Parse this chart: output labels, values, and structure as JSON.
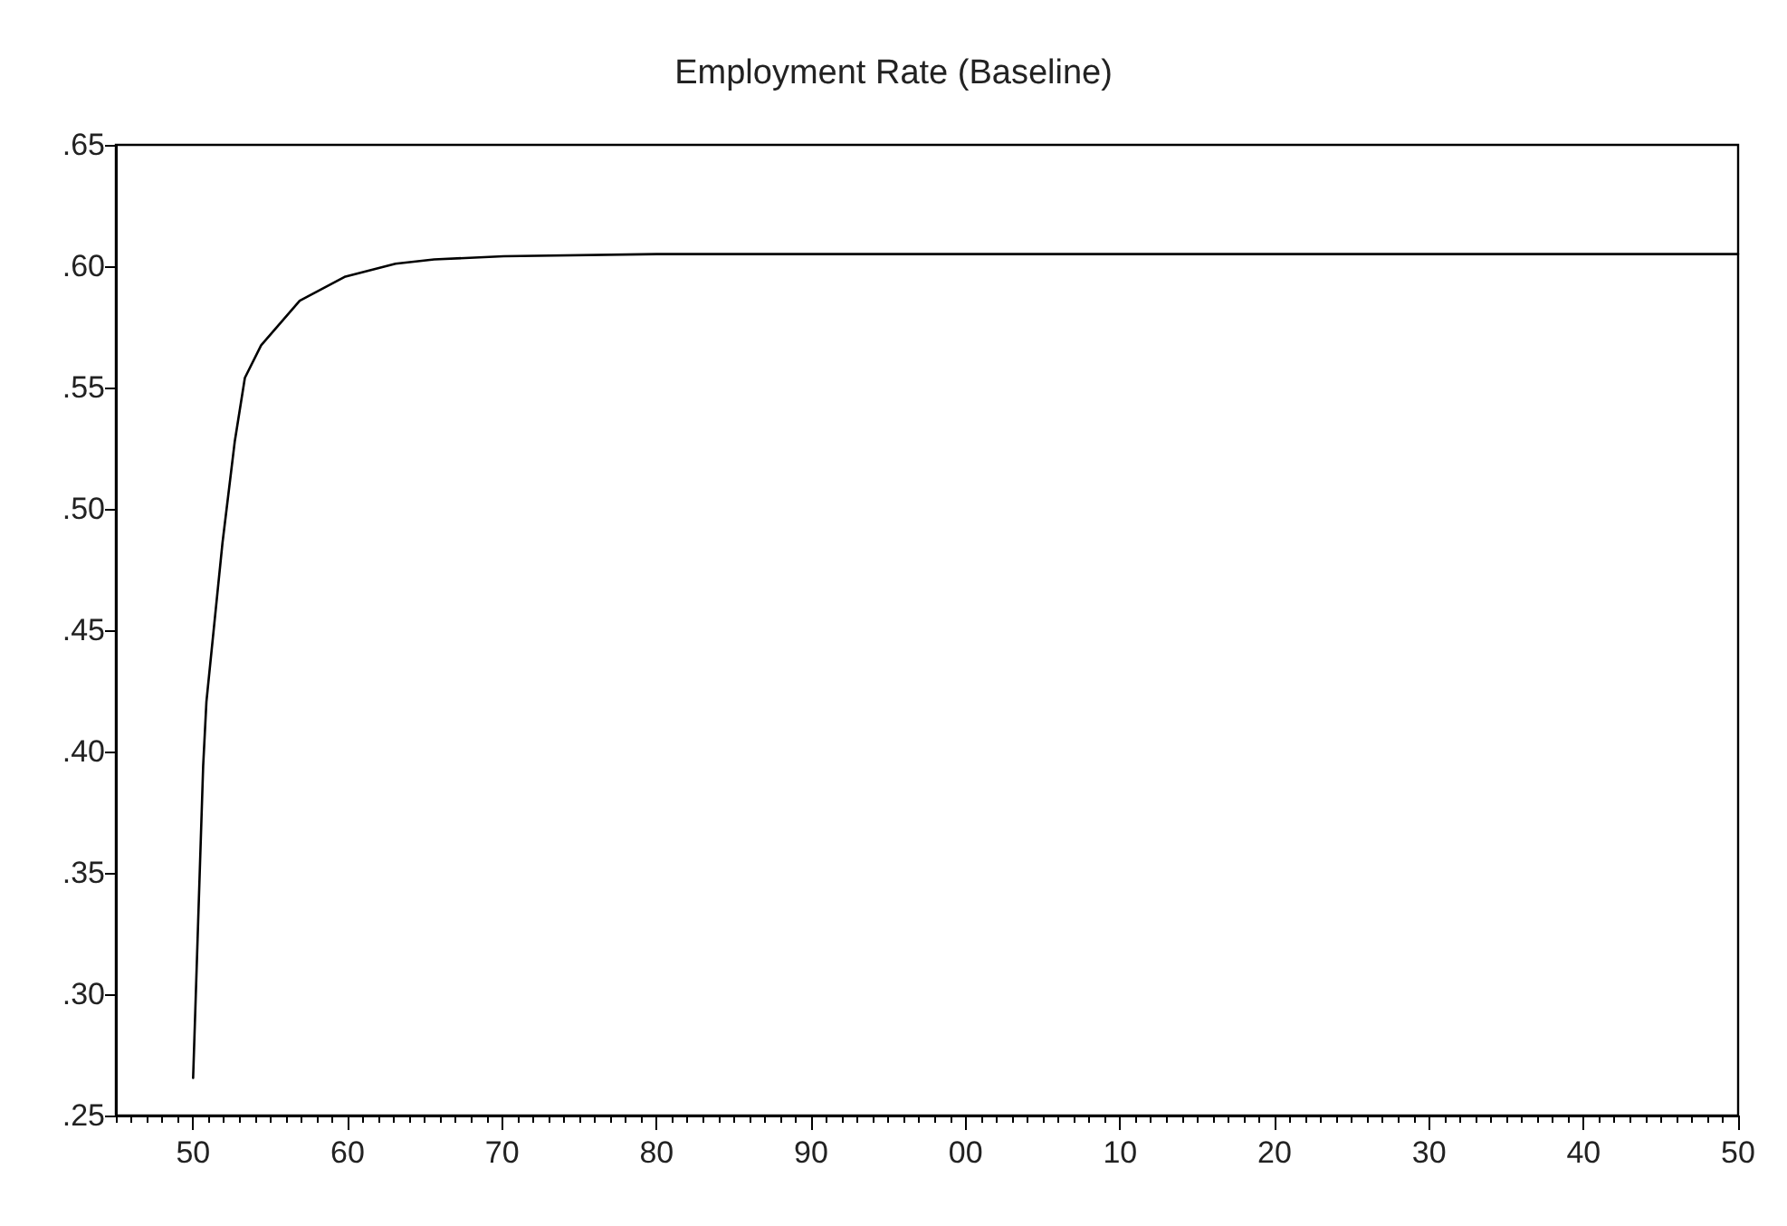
{
  "chart_data": {
    "type": "line",
    "title": "Employment Rate (Baseline)",
    "x": [
      1950.0,
      1950.65,
      1950.86,
      1951.9,
      1952.7,
      1953.35,
      1954.4,
      1956.9,
      1959.8,
      1963.1,
      1965.6,
      1970.1,
      1980,
      2000,
      2020,
      2050
    ],
    "series": [
      {
        "color": "#000000",
        "values": [
          0.2655,
          0.394,
          0.4205,
          0.486,
          0.528,
          0.554,
          0.5674,
          0.5858,
          0.5956,
          0.601,
          0.6028,
          0.6041,
          0.605,
          0.605,
          0.605,
          0.605
        ]
      }
    ],
    "xlim": [
      1945,
      2050
    ],
    "xticks": [
      {
        "value": 1950,
        "label": "50"
      },
      {
        "value": 1960,
        "label": "60"
      },
      {
        "value": 1970,
        "label": "70"
      },
      {
        "value": 1980,
        "label": "80"
      },
      {
        "value": 1990,
        "label": "90"
      },
      {
        "value": 2000,
        "label": "00"
      },
      {
        "value": 2010,
        "label": "10"
      },
      {
        "value": 2020,
        "label": "20"
      },
      {
        "value": 2030,
        "label": "30"
      },
      {
        "value": 2040,
        "label": "40"
      },
      {
        "value": 2050,
        "label": "50"
      }
    ],
    "ylim": [
      0.25,
      0.65
    ],
    "yticks": [
      {
        "value": 0.25,
        "label": ".25"
      },
      {
        "value": 0.3,
        "label": ".30"
      },
      {
        "value": 0.35,
        "label": ".35"
      },
      {
        "value": 0.4,
        "label": ".40"
      },
      {
        "value": 0.45,
        "label": ".45"
      },
      {
        "value": 0.5,
        "label": ".50"
      },
      {
        "value": 0.55,
        "label": ".55"
      },
      {
        "value": 0.6,
        "label": ".60"
      },
      {
        "value": 0.65,
        "label": ".65"
      }
    ],
    "grid": false,
    "marker": "none",
    "line_style": "solid"
  }
}
